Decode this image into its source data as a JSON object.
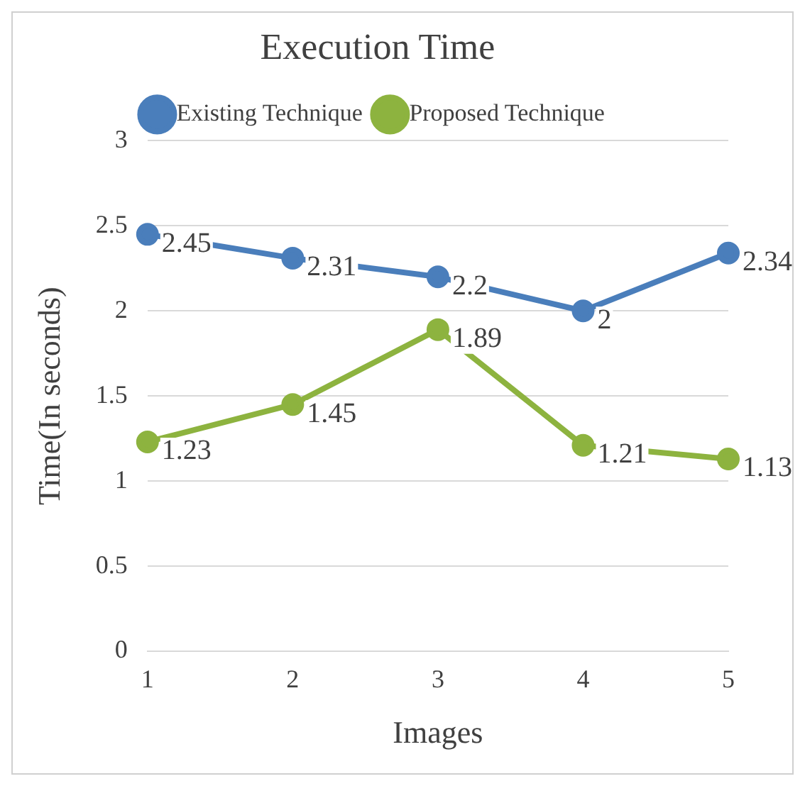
{
  "chart_data": {
    "type": "line",
    "title": "Execution Time",
    "xlabel": "Images",
    "ylabel": "Time(In seconds)",
    "categories": [
      "1",
      "2",
      "3",
      "4",
      "5"
    ],
    "series": [
      {
        "name": "Existing Technique",
        "color": "#4a7ebb",
        "values": [
          2.45,
          2.31,
          2.2,
          2,
          2.34
        ]
      },
      {
        "name": "Proposed Technique",
        "color": "#8db33f",
        "values": [
          1.23,
          1.45,
          1.89,
          1.21,
          1.13
        ]
      }
    ],
    "ylim": [
      0,
      3
    ],
    "yticks": [
      0,
      0.5,
      1,
      1.5,
      2,
      2.5,
      3
    ],
    "grid": "y",
    "legend": "top",
    "marker": "circle",
    "line_style": "solid",
    "data_labels": true
  }
}
